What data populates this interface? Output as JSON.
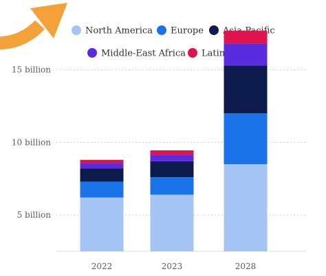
{
  "chart_data": {
    "type": "bar",
    "stacked": true,
    "title": "",
    "xlabel": "",
    "ylabel": "",
    "categories": [
      "2022",
      "2023",
      "2028"
    ],
    "ylim": [
      2.5,
      16
    ],
    "yticks": [
      5,
      10,
      15
    ],
    "ytick_labels": [
      "5 billion",
      "10 billion",
      "15 billion"
    ],
    "grid": true,
    "legend_position": "top",
    "series": [
      {
        "name": "North America",
        "color": "#a4c4f4",
        "values": [
          3.7,
          3.9,
          6.0
        ]
      },
      {
        "name": "Europe",
        "color": "#1a73e8",
        "values": [
          1.1,
          1.2,
          3.5
        ]
      },
      {
        "name": "Asia-Pacific",
        "color": "#0d1b4c",
        "values": [
          0.9,
          1.1,
          3.3
        ]
      },
      {
        "name": "Middle-East Africa",
        "color": "#5b2be0",
        "values": [
          0.35,
          0.45,
          1.5
        ]
      },
      {
        "name": "Latin America",
        "color": "#e0144c",
        "values": [
          0.25,
          0.3,
          0.9
        ]
      }
    ]
  },
  "decoration": {
    "arrow_icon": "curved-arrow-icon",
    "arrow_color": "#f5a13a"
  }
}
